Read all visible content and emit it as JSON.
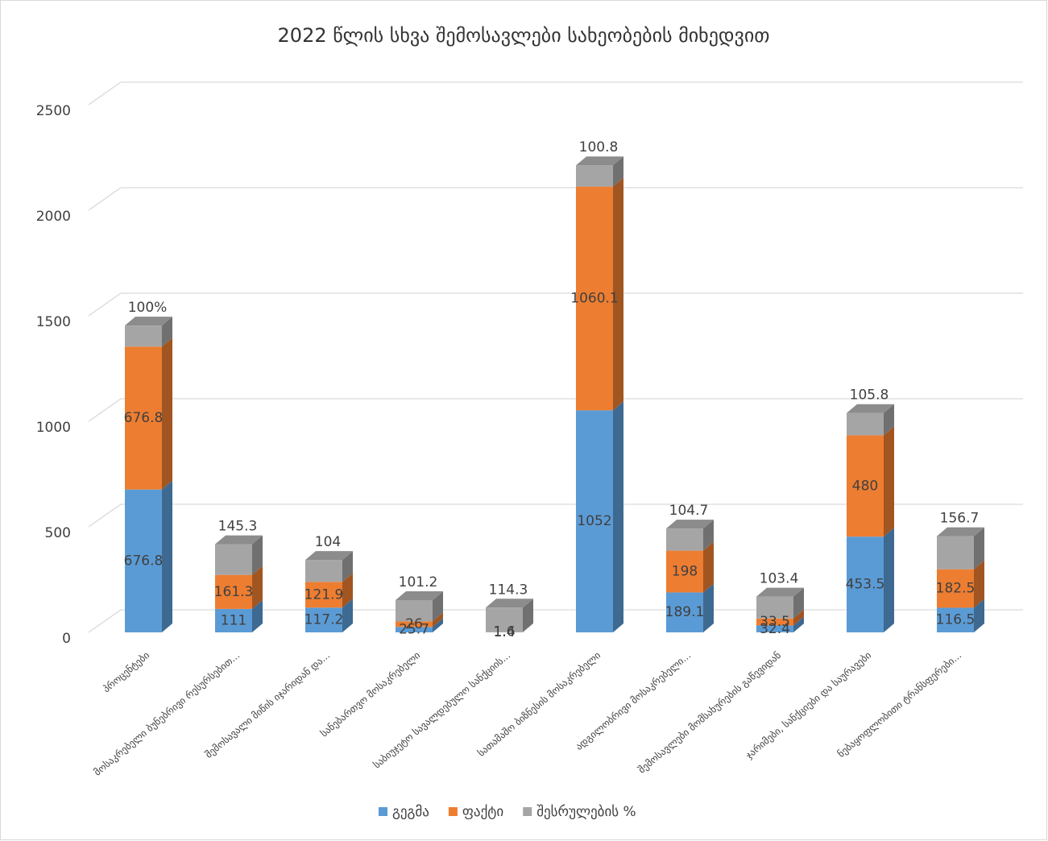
{
  "chart_data": {
    "type": "bar3d_stacked",
    "title": "2022 წლის სხვა შემოსავლები სახეობების მიხედვით",
    "categories": [
      "პროცენტები",
      "მოსაკრებელი ბუნებრივი რესურსებით...",
      "შემოსავალი მიწის იჯარიდან და...",
      "სანებართვო მოსაკრებელი",
      "საბიუჯეტო სავალდებულო სანქციის...",
      "სათამაშო ბიზნესის მოსაკრებელი",
      "ადგილობრივი მოსაკრებელი...",
      "შემოსავლები მომსახურების გაწევიდან",
      "ჯარიმები, სანქციები და საურავები",
      "ნებაყოფლობითი ტრანსფერები..."
    ],
    "series": [
      {
        "name": "გეგმა",
        "color": "#5b9bd5",
        "values": [
          676.8,
          111,
          117.2,
          25.7,
          1.4,
          1052,
          189.1,
          32.4,
          453.5,
          116.5
        ]
      },
      {
        "name": "ფაქტი",
        "color": "#ed7d31",
        "values": [
          676.8,
          161.3,
          121.9,
          26,
          1.6,
          1060.1,
          198,
          33.5,
          480,
          182.5
        ]
      },
      {
        "name": "შესრულების %",
        "color": "#a5a5a5",
        "values": [
          100,
          145.3,
          104,
          101.2,
          114.3,
          100.8,
          104.7,
          103.4,
          105.8,
          156.7
        ],
        "value_labels": [
          "100%",
          "145.3",
          "104",
          "101.2",
          "114.3",
          "100.8",
          "104.7",
          "103.4",
          "105.8",
          "156.7"
        ]
      }
    ],
    "ylim": [
      0,
      2500
    ],
    "yticks": [
      0,
      500,
      1000,
      1500,
      2000,
      2500
    ],
    "grid": true,
    "legend": "bottom"
  }
}
